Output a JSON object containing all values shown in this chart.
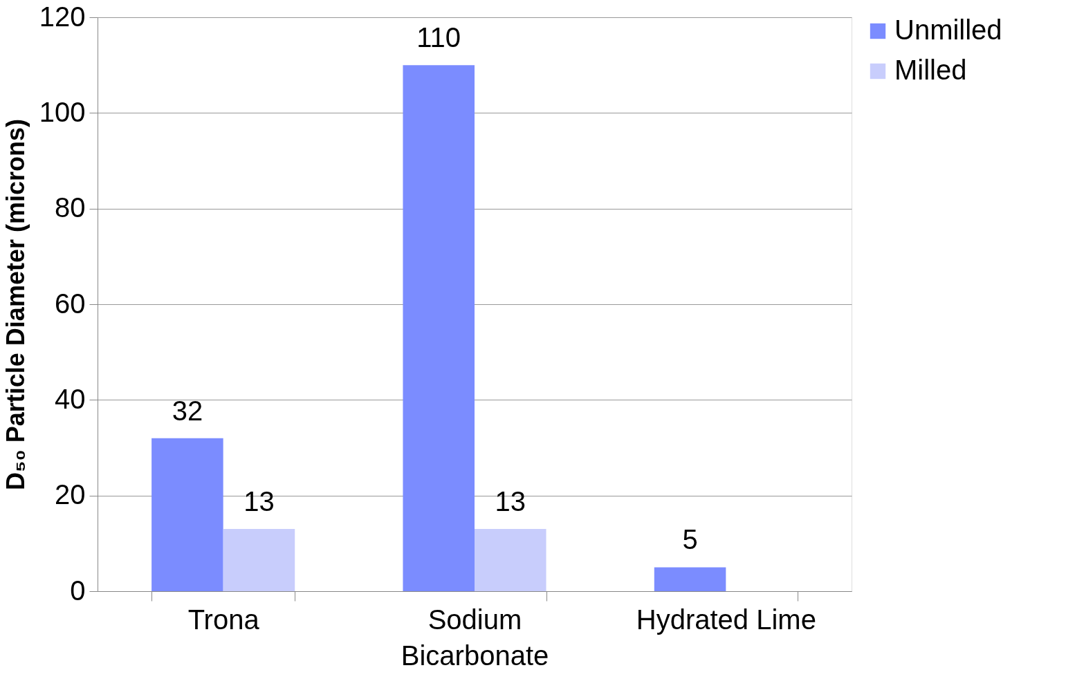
{
  "chart_data": {
    "type": "bar",
    "categories": [
      "Trona",
      "Sodium Bicarbonate",
      "Hydrated Lime"
    ],
    "series": [
      {
        "name": "Unmilled",
        "color": "#7b8cff",
        "values": [
          32,
          110,
          5
        ]
      },
      {
        "name": "Milled",
        "color": "#c8cdfc",
        "values": [
          13,
          13,
          null
        ]
      }
    ],
    "ylabel": "D₅₀ Particle Diameter (microns)",
    "ylim": [
      0,
      120
    ],
    "yticks": [
      0,
      20,
      40,
      60,
      80,
      100,
      120
    ],
    "grid": "y",
    "legend": "right",
    "data_labels": true
  }
}
